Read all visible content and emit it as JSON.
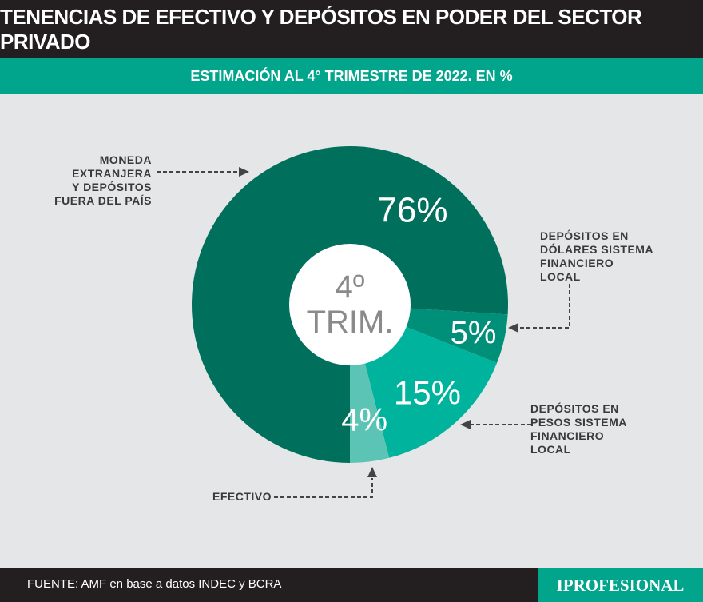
{
  "title": "TENENCIAS DE EFECTIVO Y DEPÓSITOS EN PODER DEL SECTOR PRIVADO",
  "subtitle": "ESTIMACIÓN AL 4° TRIMESTRE DE 2022. EN %",
  "chart_data": {
    "type": "pie",
    "center_label": [
      "4º",
      "TRIM."
    ],
    "slices": [
      {
        "name": "MONEDA EXTRANJERA Y DEPÓSITOS FUERA DEL PAÍS",
        "value": 76,
        "label": "76%",
        "color": "#00705c"
      },
      {
        "name": "DEPÓSITOS EN DÓLARES SISTEMA FINANCIERO LOCAL",
        "value": 5,
        "label": "5%",
        "color": "#008f78"
      },
      {
        "name": "DEPÓSITOS EN PESOS SISTEMA FINANCIERO LOCAL",
        "value": 15,
        "label": "15%",
        "color": "#00b39c"
      },
      {
        "name": "EFECTIVO",
        "value": 4,
        "label": "4%",
        "color": "#5cc4b4"
      }
    ]
  },
  "labels": {
    "moneda": [
      "MONEDA",
      "EXTRANJERA",
      "Y DEPÓSITOS",
      "FUERA DEL PAÍS"
    ],
    "dolares": [
      "DEPÓSITOS EN",
      "DÓLARES SISTEMA",
      "FINANCIERO",
      "LOCAL"
    ],
    "pesos": [
      "DEPÓSITOS EN",
      "PESOS SISTEMA",
      "FINANCIERO",
      "LOCAL"
    ],
    "efectivo": [
      "EFECTIVO"
    ]
  },
  "footer": {
    "source": "FUENTE: AMF en base a datos INDEC y BCRA",
    "logo": "IPROFESIONAL"
  }
}
